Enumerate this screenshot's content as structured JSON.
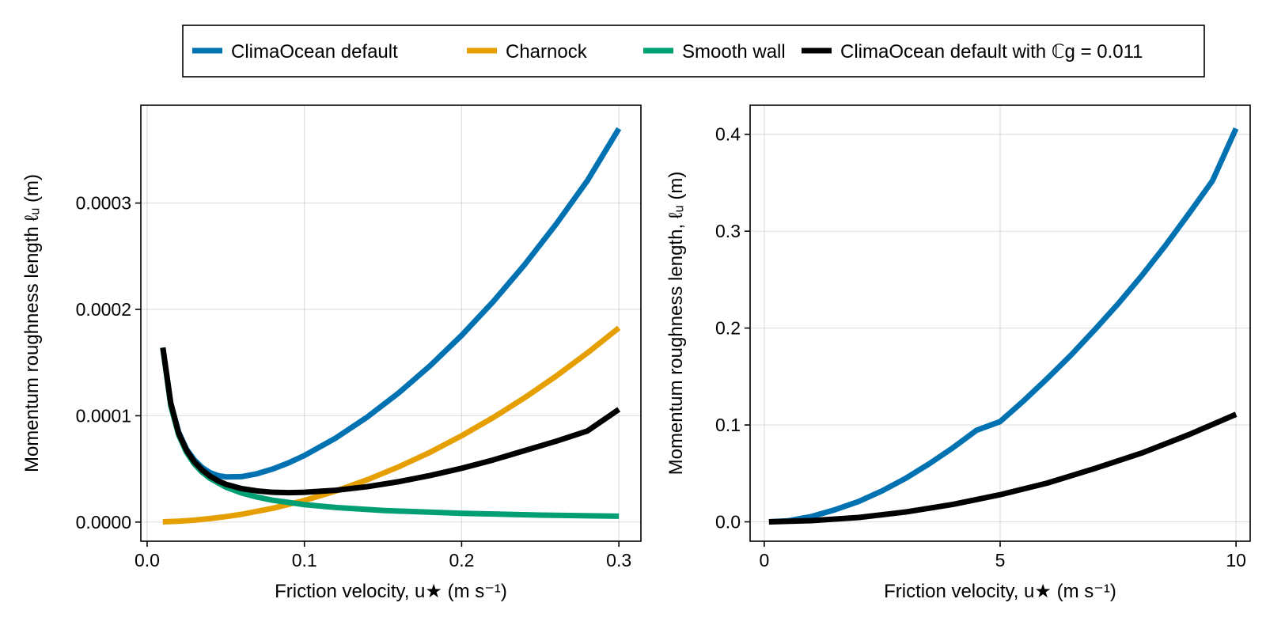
{
  "legend": {
    "placement": "top-center",
    "entries": [
      {
        "key": "climaocean_default",
        "label": "ClimaOcean default",
        "color": "#0072B2"
      },
      {
        "key": "charnock",
        "label": "Charnock",
        "color": "#E69F00"
      },
      {
        "key": "smooth_wall",
        "label": "Smooth wall",
        "color": "#009E73"
      },
      {
        "key": "climaocean_cg",
        "label": "ClimaOcean default with ℂg = 0.011",
        "color": "#000000"
      }
    ]
  },
  "chart_data": [
    {
      "type": "line",
      "xlabel": "Friction velocity, u★ (m s⁻¹)",
      "ylabel": "Momentum roughness length ℓᵤ (m)",
      "xlim": [
        -0.004,
        0.314
      ],
      "ylim": [
        -1.8e-05,
        0.000392
      ],
      "xticks": [
        0.0,
        0.1,
        0.2,
        0.3
      ],
      "xtick_labels": [
        "0.0",
        "0.1",
        "0.2",
        "0.3"
      ],
      "yticks": [
        0.0,
        0.0001,
        0.0002,
        0.0003
      ],
      "ytick_labels": [
        "0.0000",
        "0.0001",
        "0.0002",
        "0.0003"
      ],
      "grid": true,
      "series": [
        {
          "name": "ClimaOcean default",
          "color": "#0072B2",
          "x": [
            0.01,
            0.015,
            0.02,
            0.025,
            0.03,
            0.035,
            0.04,
            0.045,
            0.05,
            0.06,
            0.07,
            0.08,
            0.09,
            0.1,
            0.12,
            0.14,
            0.16,
            0.18,
            0.2,
            0.22,
            0.24,
            0.26,
            0.28,
            0.3
          ],
          "y": [
            0.000164,
            0.000112,
            8.47e-05,
            6.87e-05,
            5.84e-05,
            5.13e-05,
            4.64e-05,
            4.37e-05,
            4.25e-05,
            4.27e-05,
            4.55e-05,
            5e-05,
            5.57e-05,
            6.26e-05,
            7.91e-05,
            9.88e-05,
            0.0001215,
            0.0001471,
            0.0001756,
            0.0002072,
            0.000242,
            0.00028,
            0.0003212,
            0.00037
          ]
        },
        {
          "name": "Charnock",
          "color": "#E69F00",
          "x": [
            0.01,
            0.02,
            0.03,
            0.04,
            0.05,
            0.06,
            0.08,
            0.1,
            0.12,
            0.14,
            0.16,
            0.18,
            0.2,
            0.22,
            0.24,
            0.26,
            0.28,
            0.3
          ],
          "y": [
            2e-07,
            8e-07,
            1.8e-06,
            3.3e-06,
            5.1e-06,
            7.3e-06,
            1.3e-05,
            2.03e-05,
            2.92e-05,
            3.98e-05,
            5.2e-05,
            6.57e-05,
            8.12e-05,
            9.82e-05,
            0.0001169,
            0.0001372,
            0.0001591,
            0.0001826
          ]
        },
        {
          "name": "Smooth wall",
          "color": "#009E73",
          "x": [
            0.01,
            0.015,
            0.02,
            0.025,
            0.03,
            0.035,
            0.04,
            0.05,
            0.06,
            0.07,
            0.08,
            0.1,
            0.12,
            0.15,
            0.2,
            0.25,
            0.3
          ],
          "y": [
            0.000164,
            0.0001095,
            8.21e-05,
            6.57e-05,
            5.47e-05,
            4.69e-05,
            4.11e-05,
            3.29e-05,
            2.74e-05,
            2.35e-05,
            2.05e-05,
            1.64e-05,
            1.37e-05,
            1.09e-05,
            8.2e-06,
            6.6e-06,
            5.5e-06
          ]
        },
        {
          "name": "ClimaOcean default with ℂg = 0.011",
          "color": "#000000",
          "x": [
            0.01,
            0.015,
            0.02,
            0.025,
            0.03,
            0.035,
            0.04,
            0.045,
            0.05,
            0.06,
            0.07,
            0.08,
            0.09,
            0.1,
            0.12,
            0.14,
            0.16,
            0.18,
            0.2,
            0.22,
            0.24,
            0.26,
            0.28,
            0.3
          ],
          "y": [
            0.000164,
            0.000112,
            8.38e-05,
            6.76e-05,
            5.66e-05,
            4.9e-05,
            4.32e-05,
            3.89e-05,
            3.56e-05,
            3.15e-05,
            2.93e-05,
            2.8e-05,
            2.77e-05,
            2.8e-05,
            2.99e-05,
            3.33e-05,
            3.8e-05,
            4.38e-05,
            5.06e-05,
            5.84e-05,
            6.72e-05,
            7.6e-05,
            8.57e-05,
            0.000106
          ]
        }
      ]
    },
    {
      "type": "line",
      "xlabel": "Friction velocity, u★ (m s⁻¹)",
      "ylabel": "Momentum roughness length, ℓᵤ (m)",
      "xlim": [
        -0.3,
        10.3
      ],
      "ylim": [
        -0.02,
        0.43
      ],
      "xticks": [
        0,
        5,
        10
      ],
      "xtick_labels": [
        "0",
        "5",
        "10"
      ],
      "yticks": [
        0.0,
        0.1,
        0.2,
        0.3,
        0.4
      ],
      "ytick_labels": [
        "0.0",
        "0.1",
        "0.2",
        "0.3",
        "0.4"
      ],
      "grid": true,
      "series": [
        {
          "name": "ClimaOcean default",
          "color": "#0072B2",
          "x": [
            0.1,
            0.5,
            1,
            1.5,
            2,
            2.5,
            3,
            3.5,
            4,
            4.5,
            5,
            5.5,
            6,
            6.5,
            7,
            7.5,
            8,
            8.5,
            9,
            9.5,
            10
          ],
          "y": [
            0.0,
            0.001,
            0.0055,
            0.0125,
            0.021,
            0.032,
            0.045,
            0.06,
            0.0765,
            0.0945,
            0.1035,
            0.125,
            0.148,
            0.172,
            0.198,
            0.225,
            0.254,
            0.285,
            0.318,
            0.352,
            0.406
          ]
        },
        {
          "name": "ClimaOcean default with ℂg = 0.011",
          "color": "#000000",
          "x": [
            0.1,
            1,
            2,
            3,
            4,
            5,
            6,
            7,
            8,
            9,
            10
          ],
          "y": [
            0.0,
            0.0012,
            0.0045,
            0.0102,
            0.018,
            0.028,
            0.04,
            0.055,
            0.071,
            0.09,
            0.111
          ]
        }
      ]
    }
  ]
}
